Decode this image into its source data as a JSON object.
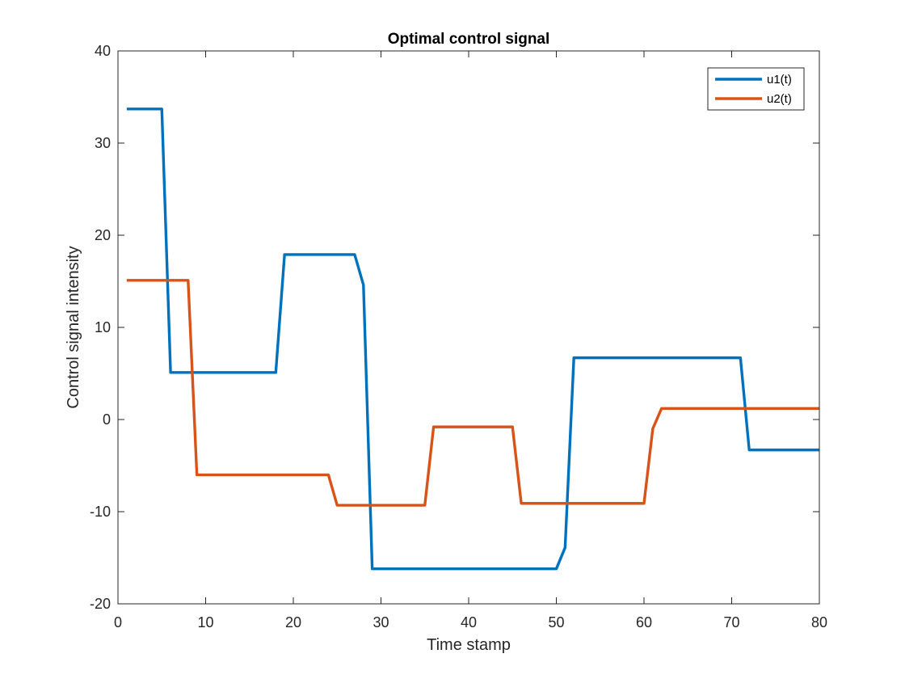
{
  "chart_data": {
    "type": "line",
    "title": "Optimal control signal",
    "xlabel": "Time stamp",
    "ylabel": "Control signal intensity",
    "xlim": [
      0,
      80
    ],
    "ylim": [
      -20,
      40
    ],
    "xticks": [
      0,
      10,
      20,
      30,
      40,
      50,
      60,
      70,
      80
    ],
    "yticks": [
      -20,
      -10,
      0,
      10,
      20,
      30,
      40
    ],
    "xtick_labels": [
      "0",
      "10",
      "20",
      "30",
      "40",
      "50",
      "60",
      "70",
      "80"
    ],
    "ytick_labels": [
      "-20",
      "-10",
      "0",
      "10",
      "20",
      "30",
      "40"
    ],
    "grid": false,
    "legend_position": "top-right",
    "x": [
      1,
      2,
      3,
      4,
      5,
      6,
      7,
      8,
      9,
      10,
      11,
      12,
      13,
      14,
      15,
      16,
      17,
      18,
      19,
      20,
      21,
      22,
      23,
      24,
      25,
      26,
      27,
      28,
      29,
      30,
      31,
      32,
      33,
      34,
      35,
      36,
      37,
      38,
      39,
      40,
      41,
      42,
      43,
      44,
      45,
      46,
      47,
      48,
      49,
      50,
      51,
      52,
      53,
      54,
      55,
      56,
      57,
      58,
      59,
      60,
      61,
      62,
      63,
      64,
      65,
      66,
      67,
      68,
      69,
      70,
      71,
      72,
      73,
      74,
      75,
      76,
      77,
      78,
      79,
      80
    ],
    "series": [
      {
        "name": "u1(t)",
        "color": "#0072BD",
        "values": [
          33.7,
          33.7,
          33.7,
          33.7,
          33.7,
          5.1,
          5.1,
          5.1,
          5.1,
          5.1,
          5.1,
          5.1,
          5.1,
          5.1,
          5.1,
          5.1,
          5.1,
          5.1,
          17.9,
          17.9,
          17.9,
          17.9,
          17.9,
          17.9,
          17.9,
          17.9,
          17.9,
          14.6,
          -16.2,
          -16.2,
          -16.2,
          -16.2,
          -16.2,
          -16.2,
          -16.2,
          -16.2,
          -16.2,
          -16.2,
          -16.2,
          -16.2,
          -16.2,
          -16.2,
          -16.2,
          -16.2,
          -16.2,
          -16.2,
          -16.2,
          -16.2,
          -16.2,
          -16.2,
          -13.9,
          6.7,
          6.7,
          6.7,
          6.7,
          6.7,
          6.7,
          6.7,
          6.7,
          6.7,
          6.7,
          6.7,
          6.7,
          6.7,
          6.7,
          6.7,
          6.7,
          6.7,
          6.7,
          6.7,
          6.7,
          -3.3,
          -3.3,
          -3.3,
          -3.3,
          -3.3,
          -3.3,
          -3.3,
          -3.3,
          -3.3
        ]
      },
      {
        "name": "u2(t)",
        "color": "#D95319",
        "values": [
          15.1,
          15.1,
          15.1,
          15.1,
          15.1,
          15.1,
          15.1,
          15.1,
          -6.0,
          -6.0,
          -6.0,
          -6.0,
          -6.0,
          -6.0,
          -6.0,
          -6.0,
          -6.0,
          -6.0,
          -6.0,
          -6.0,
          -6.0,
          -6.0,
          -6.0,
          -6.0,
          -9.3,
          -9.3,
          -9.3,
          -9.3,
          -9.3,
          -9.3,
          -9.3,
          -9.3,
          -9.3,
          -9.3,
          -9.3,
          -0.8,
          -0.8,
          -0.8,
          -0.8,
          -0.8,
          -0.8,
          -0.8,
          -0.8,
          -0.8,
          -0.8,
          -9.1,
          -9.1,
          -9.1,
          -9.1,
          -9.1,
          -9.1,
          -9.1,
          -9.1,
          -9.1,
          -9.1,
          -9.1,
          -9.1,
          -9.1,
          -9.1,
          -9.1,
          -1.0,
          1.2,
          1.2,
          1.2,
          1.2,
          1.2,
          1.2,
          1.2,
          1.2,
          1.2,
          1.2,
          1.2,
          1.2,
          1.2,
          1.2,
          1.2,
          1.2,
          1.2,
          1.2,
          1.2
        ]
      }
    ]
  }
}
